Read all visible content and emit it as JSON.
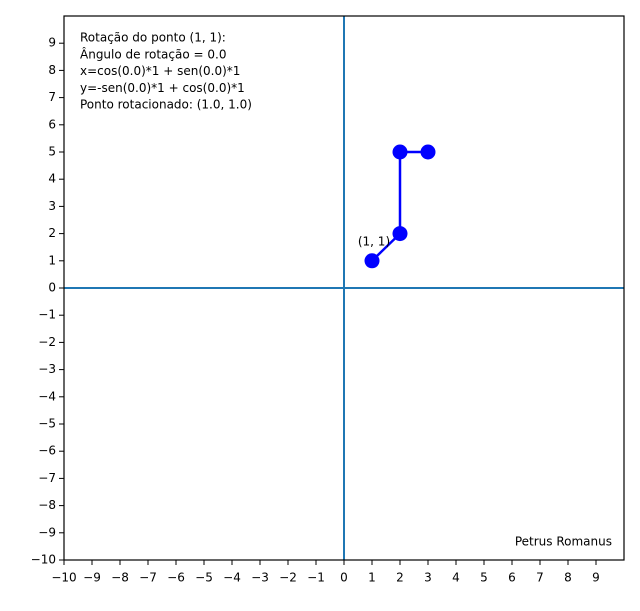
{
  "chart_data": {
    "type": "line",
    "annotation_lines": [
      "Rotação do ponto (1, 1):",
      "Ângulo de rotação = 0.0",
      "x=cos(0.0)*1 + sen(0.0)*1",
      "y=-sen(0.0)*1 + cos(0.0)*1",
      "Ponto rotacionado: (1.0, 1.0)"
    ],
    "point_label": "(1, 1)",
    "credit": "Petrus Romanus",
    "x": [
      1,
      2,
      2,
      3
    ],
    "values": [
      1,
      2,
      5,
      5
    ],
    "color": "#0000ff",
    "hlines": [
      0
    ],
    "vlines": [
      0
    ],
    "reference_color": "#1f77b4",
    "xlim": [
      -10,
      10
    ],
    "ylim": [
      -10,
      10
    ],
    "xticks": [
      {
        "value": -10,
        "label": "−10"
      },
      {
        "value": -9,
        "label": "−9"
      },
      {
        "value": -8,
        "label": "−8"
      },
      {
        "value": -7,
        "label": "−7"
      },
      {
        "value": -6,
        "label": "−6"
      },
      {
        "value": -5,
        "label": "−5"
      },
      {
        "value": -4,
        "label": "−4"
      },
      {
        "value": -3,
        "label": "−3"
      },
      {
        "value": -2,
        "label": "−2"
      },
      {
        "value": -1,
        "label": "−1"
      },
      0,
      1,
      2,
      3,
      4,
      5,
      6,
      7,
      8,
      9
    ],
    "yticks": [
      {
        "value": -10,
        "label": "−10"
      },
      {
        "value": -9,
        "label": "−9"
      },
      {
        "value": -8,
        "label": "−8"
      },
      {
        "value": -7,
        "label": "−7"
      },
      {
        "value": -6,
        "label": "−6"
      },
      {
        "value": -5,
        "label": "−5"
      },
      {
        "value": -4,
        "label": "−4"
      },
      {
        "value": -3,
        "label": "−3"
      },
      {
        "value": -2,
        "label": "−2"
      },
      {
        "value": -1,
        "label": "−1"
      },
      0,
      1,
      2,
      3,
      4,
      5,
      6,
      7,
      8,
      9
    ]
  }
}
